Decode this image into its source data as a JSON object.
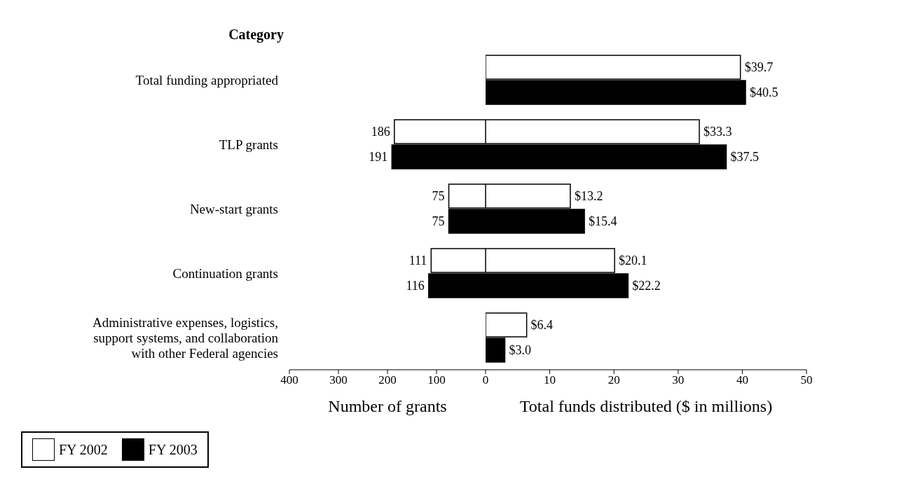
{
  "chart_data": [
    {
      "type": "bar",
      "orientation": "horizontal",
      "ylabel": "Category",
      "xlabel": "Number of grants",
      "categories": [
        "Total funding appropriated",
        "TLP grants",
        "New-start grants",
        "Continuation grants",
        "Administrative expenses, logistics, support systems, and collaboration with other Federal agencies"
      ],
      "series": [
        {
          "name": "FY 2002",
          "color": "#ffffff",
          "values": [
            null,
            186,
            75,
            111,
            null
          ]
        },
        {
          "name": "FY 2003",
          "color": "#000000",
          "values": [
            null,
            191,
            75,
            116,
            null
          ]
        }
      ],
      "xlim": [
        400,
        0
      ],
      "xticks": [
        400,
        300,
        200,
        100
      ],
      "data_labels": true,
      "legend": "bottom left",
      "grid": false
    },
    {
      "type": "bar",
      "orientation": "horizontal",
      "xlabel": "Total funds distributed ($ in millions)",
      "categories": [
        null,
        null,
        null,
        null,
        null
      ],
      "series": [
        {
          "color": "#ffffff",
          "values": [
            39.7,
            33.3,
            13.2,
            20.1,
            6.4
          ],
          "value_labels": [
            "$39.7",
            "$33.3",
            "$13.2",
            "$20.1",
            "$6.4"
          ]
        },
        {
          "color": "#000000",
          "values": [
            40.5,
            37.5,
            15.4,
            22.2,
            3.0
          ],
          "value_labels": [
            "$40.5",
            "$37.5",
            "$15.4",
            "$22.2",
            "$3.0"
          ]
        }
      ],
      "xlim": [
        0,
        50
      ],
      "xticks": [
        0,
        10,
        20,
        30,
        40,
        50
      ],
      "tick_labels": "x",
      "grid": false
    }
  ]
}
